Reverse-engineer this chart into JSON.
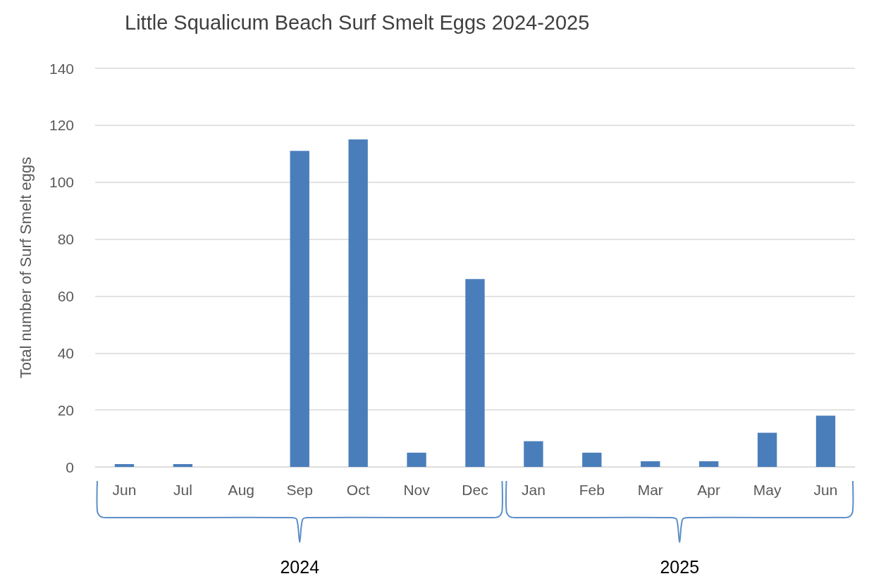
{
  "chart_data": {
    "type": "bar",
    "title": "Little Squalicum Beach Surf Smelt Eggs 2024-2025",
    "ylabel": "Total number of Surf Smelt eggs",
    "categories": [
      "Jun",
      "Jul",
      "Aug",
      "Sep",
      "Oct",
      "Nov",
      "Dec",
      "Jan",
      "Feb",
      "Mar",
      "Apr",
      "May",
      "Jun"
    ],
    "values": [
      1,
      1,
      0,
      111,
      115,
      5,
      66,
      9,
      5,
      2,
      2,
      12,
      18
    ],
    "color": "#4a7ebb",
    "ylim": [
      0,
      140
    ],
    "yticks": [
      0,
      20,
      40,
      60,
      80,
      100,
      120,
      140
    ],
    "grid": "y",
    "annotations": [
      "2024",
      "2025"
    ]
  }
}
